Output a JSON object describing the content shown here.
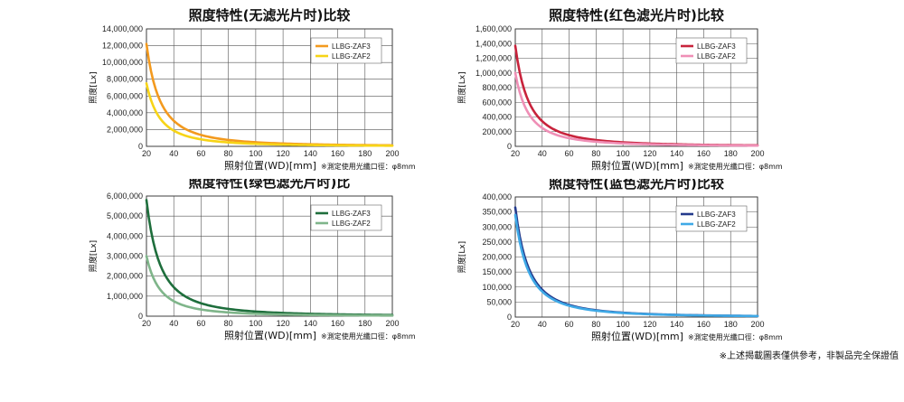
{
  "footnote": "※上述揭載圖表僅供參考，非製品完全保證值",
  "chart_data": [
    {
      "type": "line",
      "title": "照度特性(无滤光片时)比较",
      "ylabel": "照度[Lx]",
      "xlabel": "照射位置(WD)[mm]",
      "note": "※測定使用光纖口徑：φ8mm",
      "xlim": [
        20,
        200
      ],
      "ylim": [
        0,
        14000000
      ],
      "x_ticks": [
        20,
        40,
        60,
        80,
        100,
        120,
        140,
        160,
        180,
        200
      ],
      "y_ticks": [
        "0",
        "2,000,000",
        "4,000,000",
        "6,000,000",
        "8,000,000",
        "10,000,000",
        "12,000,000",
        "14,000,000"
      ],
      "legend_position": "top-right",
      "grid": true,
      "series": [
        {
          "name": "LLBG-ZAF3",
          "color": "#f39a1e",
          "x": [
            20,
            40,
            60,
            80,
            100,
            120,
            140,
            160,
            180,
            200
          ],
          "y": [
            12200000,
            3050000,
            1355000,
            762000,
            488000,
            339000,
            249000,
            190000,
            151000,
            122000
          ]
        },
        {
          "name": "LLBG-ZAF2",
          "color": "#f7d417",
          "x": [
            20,
            40,
            60,
            80,
            100,
            120,
            140,
            160,
            180,
            200
          ],
          "y": [
            7500000,
            1875000,
            833000,
            469000,
            300000,
            208000,
            153000,
            117000,
            93000,
            75000
          ]
        }
      ]
    },
    {
      "type": "line",
      "title": "照度特性(红色滤光片时)比较",
      "ylabel": "照度[Lx]",
      "xlabel": "照射位置(WD)[mm]",
      "note": "※測定使用光纖口徑：φ8mm",
      "xlim": [
        20,
        200
      ],
      "ylim": [
        0,
        1600000
      ],
      "x_ticks": [
        20,
        40,
        60,
        80,
        100,
        120,
        140,
        160,
        180,
        200
      ],
      "y_ticks": [
        "0",
        "200,000",
        "400,000",
        "600,000",
        "800,000",
        "1,000,000",
        "1,200,000",
        "1,400,000",
        "1,600,000"
      ],
      "legend_position": "top-right",
      "grid": true,
      "series": [
        {
          "name": "LLBG-ZAF3",
          "color": "#c8233c",
          "x": [
            20,
            40,
            60,
            80,
            100,
            120,
            140,
            160,
            180,
            200
          ],
          "y": [
            1370000,
            342000,
            152000,
            86000,
            55000,
            38000,
            28000,
            21000,
            17000,
            14000
          ]
        },
        {
          "name": "LLBG-ZAF2",
          "color": "#ef8fb6",
          "x": [
            20,
            40,
            60,
            80,
            100,
            120,
            140,
            160,
            180,
            200
          ],
          "y": [
            1000000,
            250000,
            111000,
            63000,
            40000,
            28000,
            20000,
            16000,
            12000,
            10000
          ]
        }
      ]
    },
    {
      "type": "line",
      "title": "照度特性(绿色滤光片时)比",
      "ylabel": "照度[Lx]",
      "xlabel": "照射位置(WD)[mm]",
      "note": "※測定使用光纖口徑：φ8mm",
      "xlim": [
        20,
        200
      ],
      "ylim": [
        0,
        6000000
      ],
      "x_ticks": [
        20,
        40,
        60,
        80,
        100,
        120,
        140,
        160,
        180,
        200
      ],
      "y_ticks": [
        "0",
        "1,000,000",
        "2,000,000",
        "3,000,000",
        "4,000,000",
        "5,000,000",
        "6,000,000"
      ],
      "legend_position": "top-right",
      "grid": true,
      "series": [
        {
          "name": "LLBG-ZAF3",
          "color": "#1e6e3c",
          "x": [
            20,
            40,
            60,
            80,
            100,
            120,
            140,
            160,
            180,
            200
          ],
          "y": [
            5800000,
            1450000,
            644000,
            363000,
            232000,
            161000,
            118000,
            91000,
            72000,
            58000
          ]
        },
        {
          "name": "LLBG-ZAF2",
          "color": "#7fb58a",
          "x": [
            20,
            40,
            60,
            80,
            100,
            120,
            140,
            160,
            180,
            200
          ],
          "y": [
            3000000,
            750000,
            333000,
            188000,
            120000,
            83000,
            61000,
            47000,
            37000,
            30000
          ]
        }
      ]
    },
    {
      "type": "line",
      "title": "照度特性(蓝色滤光片时)比较",
      "ylabel": "照度[Lx]",
      "xlabel": "照射位置(WD)[mm]",
      "note": "※測定使用光纖口徑：φ8mm",
      "xlim": [
        20,
        200
      ],
      "ylim": [
        0,
        400000
      ],
      "x_ticks": [
        20,
        40,
        60,
        80,
        100,
        120,
        140,
        160,
        180,
        200
      ],
      "y_ticks": [
        "0",
        "50,000",
        "100,000",
        "150,000",
        "200,000",
        "250,000",
        "300,000",
        "350,000",
        "400,000"
      ],
      "legend_position": "top-right",
      "grid": true,
      "series": [
        {
          "name": "LLBG-ZAF3",
          "color": "#233a8c",
          "x": [
            20,
            40,
            60,
            80,
            100,
            120,
            140,
            160,
            180,
            200
          ],
          "y": [
            365000,
            91000,
            40500,
            22800,
            14600,
            10100,
            7400,
            5700,
            4500,
            3650
          ]
        },
        {
          "name": "LLBG-ZAF2",
          "color": "#3fa9e6",
          "x": [
            20,
            40,
            60,
            80,
            100,
            120,
            140,
            160,
            180,
            200
          ],
          "y": [
            340000,
            85000,
            37800,
            21300,
            13600,
            9400,
            6900,
            5300,
            4200,
            3400
          ]
        }
      ]
    }
  ]
}
